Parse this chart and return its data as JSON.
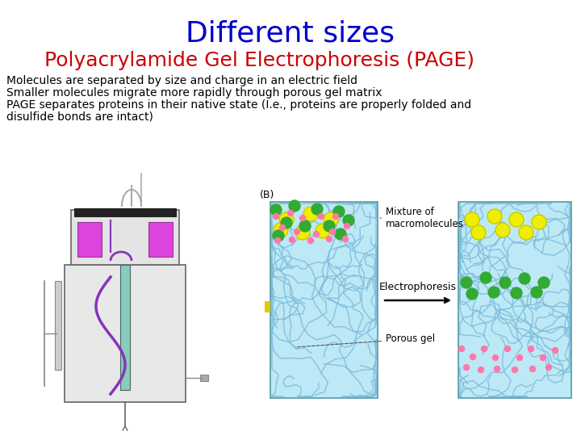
{
  "title": "Different sizes",
  "title_color": "#0000CC",
  "title_fontsize": 26,
  "title_fontweight": "normal",
  "subtitle": "Polyacrylamide Gel Electrophoresis (PAGE)",
  "subtitle_color": "#CC0000",
  "subtitle_fontsize": 18,
  "body_lines": [
    "Molecules are separated by size and charge in an electric field",
    "Smaller molecules migrate more rapidly through porous gel matrix",
    "PAGE separates proteins in their native state (I.e., proteins are properly folded and",
    "disulfide bonds are intact)"
  ],
  "body_color": "#000000",
  "body_fontsize": 10,
  "background_color": "#ffffff",
  "label_B": "(B)",
  "label_mixture": "Mixture of\nmacromolecules",
  "label_electrophoresis": "Electrophoresis",
  "label_porous": "Porous gel",
  "gel_bg": "#BDE8F5",
  "gel_border": "#5599AA",
  "squiggle_color": "#7BBCDC",
  "yellow_mol_color": "#EEEE00",
  "green_mol_color": "#33AA33",
  "pink_mol_color": "#FF77AA",
  "gel_band_color": "#DDCC00"
}
